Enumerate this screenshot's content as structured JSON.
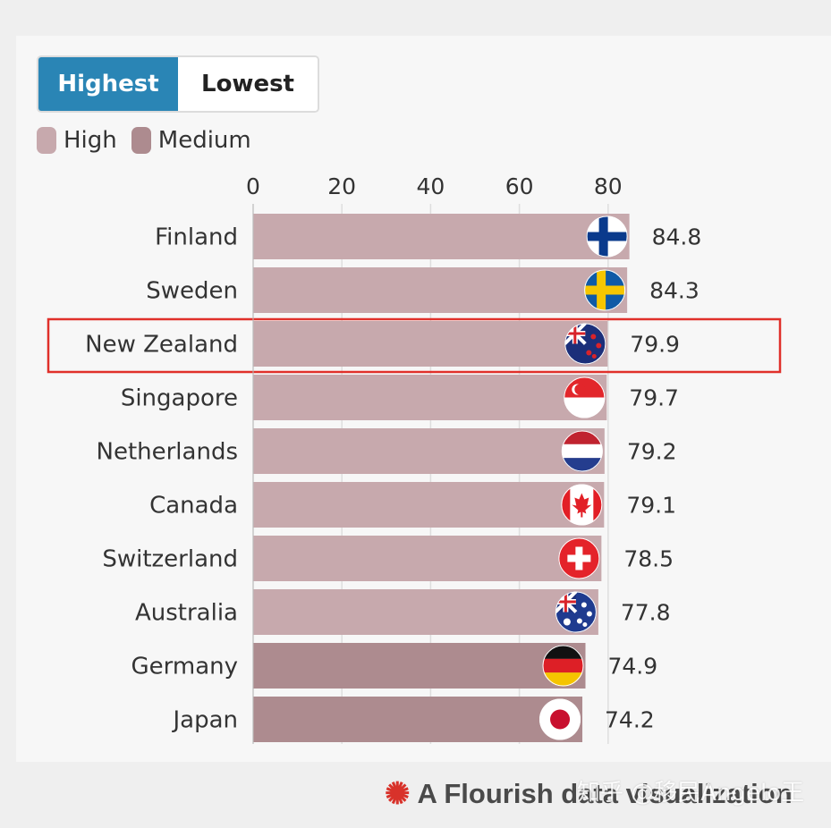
{
  "toggle": {
    "highest_label": "Highest",
    "lowest_label": "Lowest",
    "active": "Highest"
  },
  "legend": [
    {
      "label": "High",
      "color": "#c7a9ad"
    },
    {
      "label": "Medium",
      "color": "#ad8b8f"
    }
  ],
  "chart_data": {
    "type": "bar",
    "orientation": "horizontal",
    "xlim": [
      0,
      85
    ],
    "ticks": [
      0,
      20,
      40,
      60,
      80
    ],
    "grid": true,
    "categories": [
      "Finland",
      "Sweden",
      "New Zealand",
      "Singapore",
      "Netherlands",
      "Canada",
      "Switzerland",
      "Australia",
      "Germany",
      "Japan"
    ],
    "values": [
      84.8,
      84.3,
      79.9,
      79.7,
      79.2,
      79.1,
      78.5,
      77.8,
      74.9,
      74.2
    ],
    "value_labels": [
      "84.8",
      "84.3",
      "79.9",
      "79.7",
      "79.2",
      "79.1",
      "78.5",
      "77.8",
      "74.9",
      "74.2"
    ],
    "groups": [
      "High",
      "High",
      "High",
      "High",
      "High",
      "High",
      "High",
      "High",
      "Medium",
      "Medium"
    ],
    "flags": [
      "finland-flag-icon",
      "sweden-flag-icon",
      "new-zealand-flag-icon",
      "singapore-flag-icon",
      "netherlands-flag-icon",
      "canada-flag-icon",
      "switzerland-flag-icon",
      "australia-flag-icon",
      "germany-flag-icon",
      "japan-flag-icon"
    ],
    "highlight": "New Zealand",
    "highlight_color": "#e0302a"
  },
  "footer": {
    "text": "A Flourish data visualization"
  },
  "watermark": {
    "text": "知乎 @移民Angelo王"
  }
}
